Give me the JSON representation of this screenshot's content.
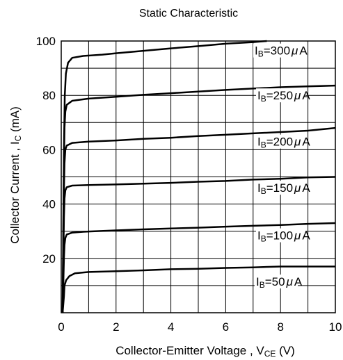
{
  "chart_data": {
    "type": "line",
    "title": "Static Characteristic",
    "xlabel": {
      "main": "Collector-Emitter Voltage , V",
      "sub": "CE",
      "unit": " (V)"
    },
    "ylabel": {
      "main": "Collector Current , I",
      "sub": "C",
      "unit": " (mA)"
    },
    "xlim": [
      0,
      10
    ],
    "ylim": [
      0,
      100
    ],
    "xticks": [
      0,
      2,
      4,
      6,
      8,
      10
    ],
    "yticks": [
      20,
      40,
      60,
      80,
      100
    ],
    "grid": true,
    "series": [
      {
        "name": "IB=50μA",
        "label": {
          "prefix": "I",
          "sub": "B",
          "value": "=50",
          "mu": "μ",
          "unit": "A"
        },
        "points": [
          [
            0.05,
            0
          ],
          [
            0.1,
            6
          ],
          [
            0.12,
            10
          ],
          [
            0.18,
            12
          ],
          [
            0.3,
            13.5
          ],
          [
            0.5,
            14.5
          ],
          [
            1,
            15
          ],
          [
            2,
            15.3
          ],
          [
            3,
            15.6
          ],
          [
            4,
            16
          ],
          [
            5,
            16.2
          ],
          [
            6,
            16.5
          ],
          [
            7,
            16.7
          ],
          [
            8,
            17
          ],
          [
            9,
            17
          ],
          [
            10,
            17
          ]
        ]
      },
      {
        "name": "IB=100μA",
        "label": {
          "prefix": "I",
          "sub": "B",
          "value": "=100",
          "mu": "μ",
          "unit": "A"
        },
        "points": [
          [
            0.05,
            0
          ],
          [
            0.1,
            20
          ],
          [
            0.12,
            25
          ],
          [
            0.15,
            27.5
          ],
          [
            0.2,
            28.8
          ],
          [
            0.4,
            29.5
          ],
          [
            0.8,
            29.8
          ],
          [
            2,
            30.3
          ],
          [
            3,
            30.7
          ],
          [
            4,
            31
          ],
          [
            5,
            31.3
          ],
          [
            6,
            31.7
          ],
          [
            7,
            32
          ],
          [
            8,
            32.3
          ],
          [
            9,
            32.7
          ],
          [
            10,
            33
          ]
        ]
      },
      {
        "name": "IB=150μA",
        "label": {
          "prefix": "I",
          "sub": "B",
          "value": "=150",
          "mu": "μ",
          "unit": "A"
        },
        "points": [
          [
            0.05,
            0
          ],
          [
            0.1,
            35
          ],
          [
            0.12,
            42
          ],
          [
            0.15,
            45
          ],
          [
            0.2,
            46.2
          ],
          [
            0.4,
            46.8
          ],
          [
            1,
            47
          ],
          [
            2,
            47.2
          ],
          [
            3,
            47.5
          ],
          [
            4,
            47.8
          ],
          [
            5,
            48.2
          ],
          [
            6,
            48.5
          ],
          [
            7,
            49
          ],
          [
            8,
            49.3
          ],
          [
            9,
            49.8
          ],
          [
            10,
            50
          ]
        ]
      },
      {
        "name": "IB=200μA",
        "label": {
          "prefix": "I",
          "sub": "B",
          "value": "=200",
          "mu": "μ",
          "unit": "A"
        },
        "points": [
          [
            0.05,
            0
          ],
          [
            0.1,
            45
          ],
          [
            0.12,
            55
          ],
          [
            0.15,
            60
          ],
          [
            0.2,
            61.5
          ],
          [
            0.4,
            62.5
          ],
          [
            1,
            63
          ],
          [
            2,
            63.4
          ],
          [
            3,
            64
          ],
          [
            4,
            64.4
          ],
          [
            5,
            65
          ],
          [
            6,
            65.5
          ],
          [
            7,
            66
          ],
          [
            8,
            66.5
          ],
          [
            9,
            67
          ],
          [
            10,
            68
          ]
        ]
      },
      {
        "name": "IB=250μA",
        "label": {
          "prefix": "I",
          "sub": "B",
          "value": "=250",
          "mu": "μ",
          "unit": "A"
        },
        "points": [
          [
            0.05,
            0
          ],
          [
            0.1,
            55
          ],
          [
            0.12,
            68
          ],
          [
            0.15,
            74
          ],
          [
            0.2,
            76.5
          ],
          [
            0.4,
            78
          ],
          [
            1,
            78.8
          ],
          [
            2,
            79.5
          ],
          [
            3,
            80.2
          ],
          [
            4,
            80.8
          ],
          [
            5,
            81.4
          ],
          [
            6,
            82
          ],
          [
            7,
            82.5
          ],
          [
            8,
            83
          ],
          [
            9,
            83.3
          ],
          [
            10,
            83.6
          ]
        ]
      },
      {
        "name": "IB=300μA",
        "label": {
          "prefix": "I",
          "sub": "B",
          "value": "=300",
          "mu": "μ",
          "unit": "A"
        },
        "points": [
          [
            0.05,
            0
          ],
          [
            0.1,
            60
          ],
          [
            0.13,
            80
          ],
          [
            0.17,
            88
          ],
          [
            0.25,
            92
          ],
          [
            0.4,
            93.8
          ],
          [
            0.8,
            94.5
          ],
          [
            1.5,
            95
          ],
          [
            2,
            95.5
          ],
          [
            3,
            96.4
          ],
          [
            4,
            97.3
          ],
          [
            5,
            98.1
          ],
          [
            6,
            99
          ],
          [
            7,
            99.6
          ],
          [
            7.5,
            100
          ]
        ]
      }
    ]
  }
}
